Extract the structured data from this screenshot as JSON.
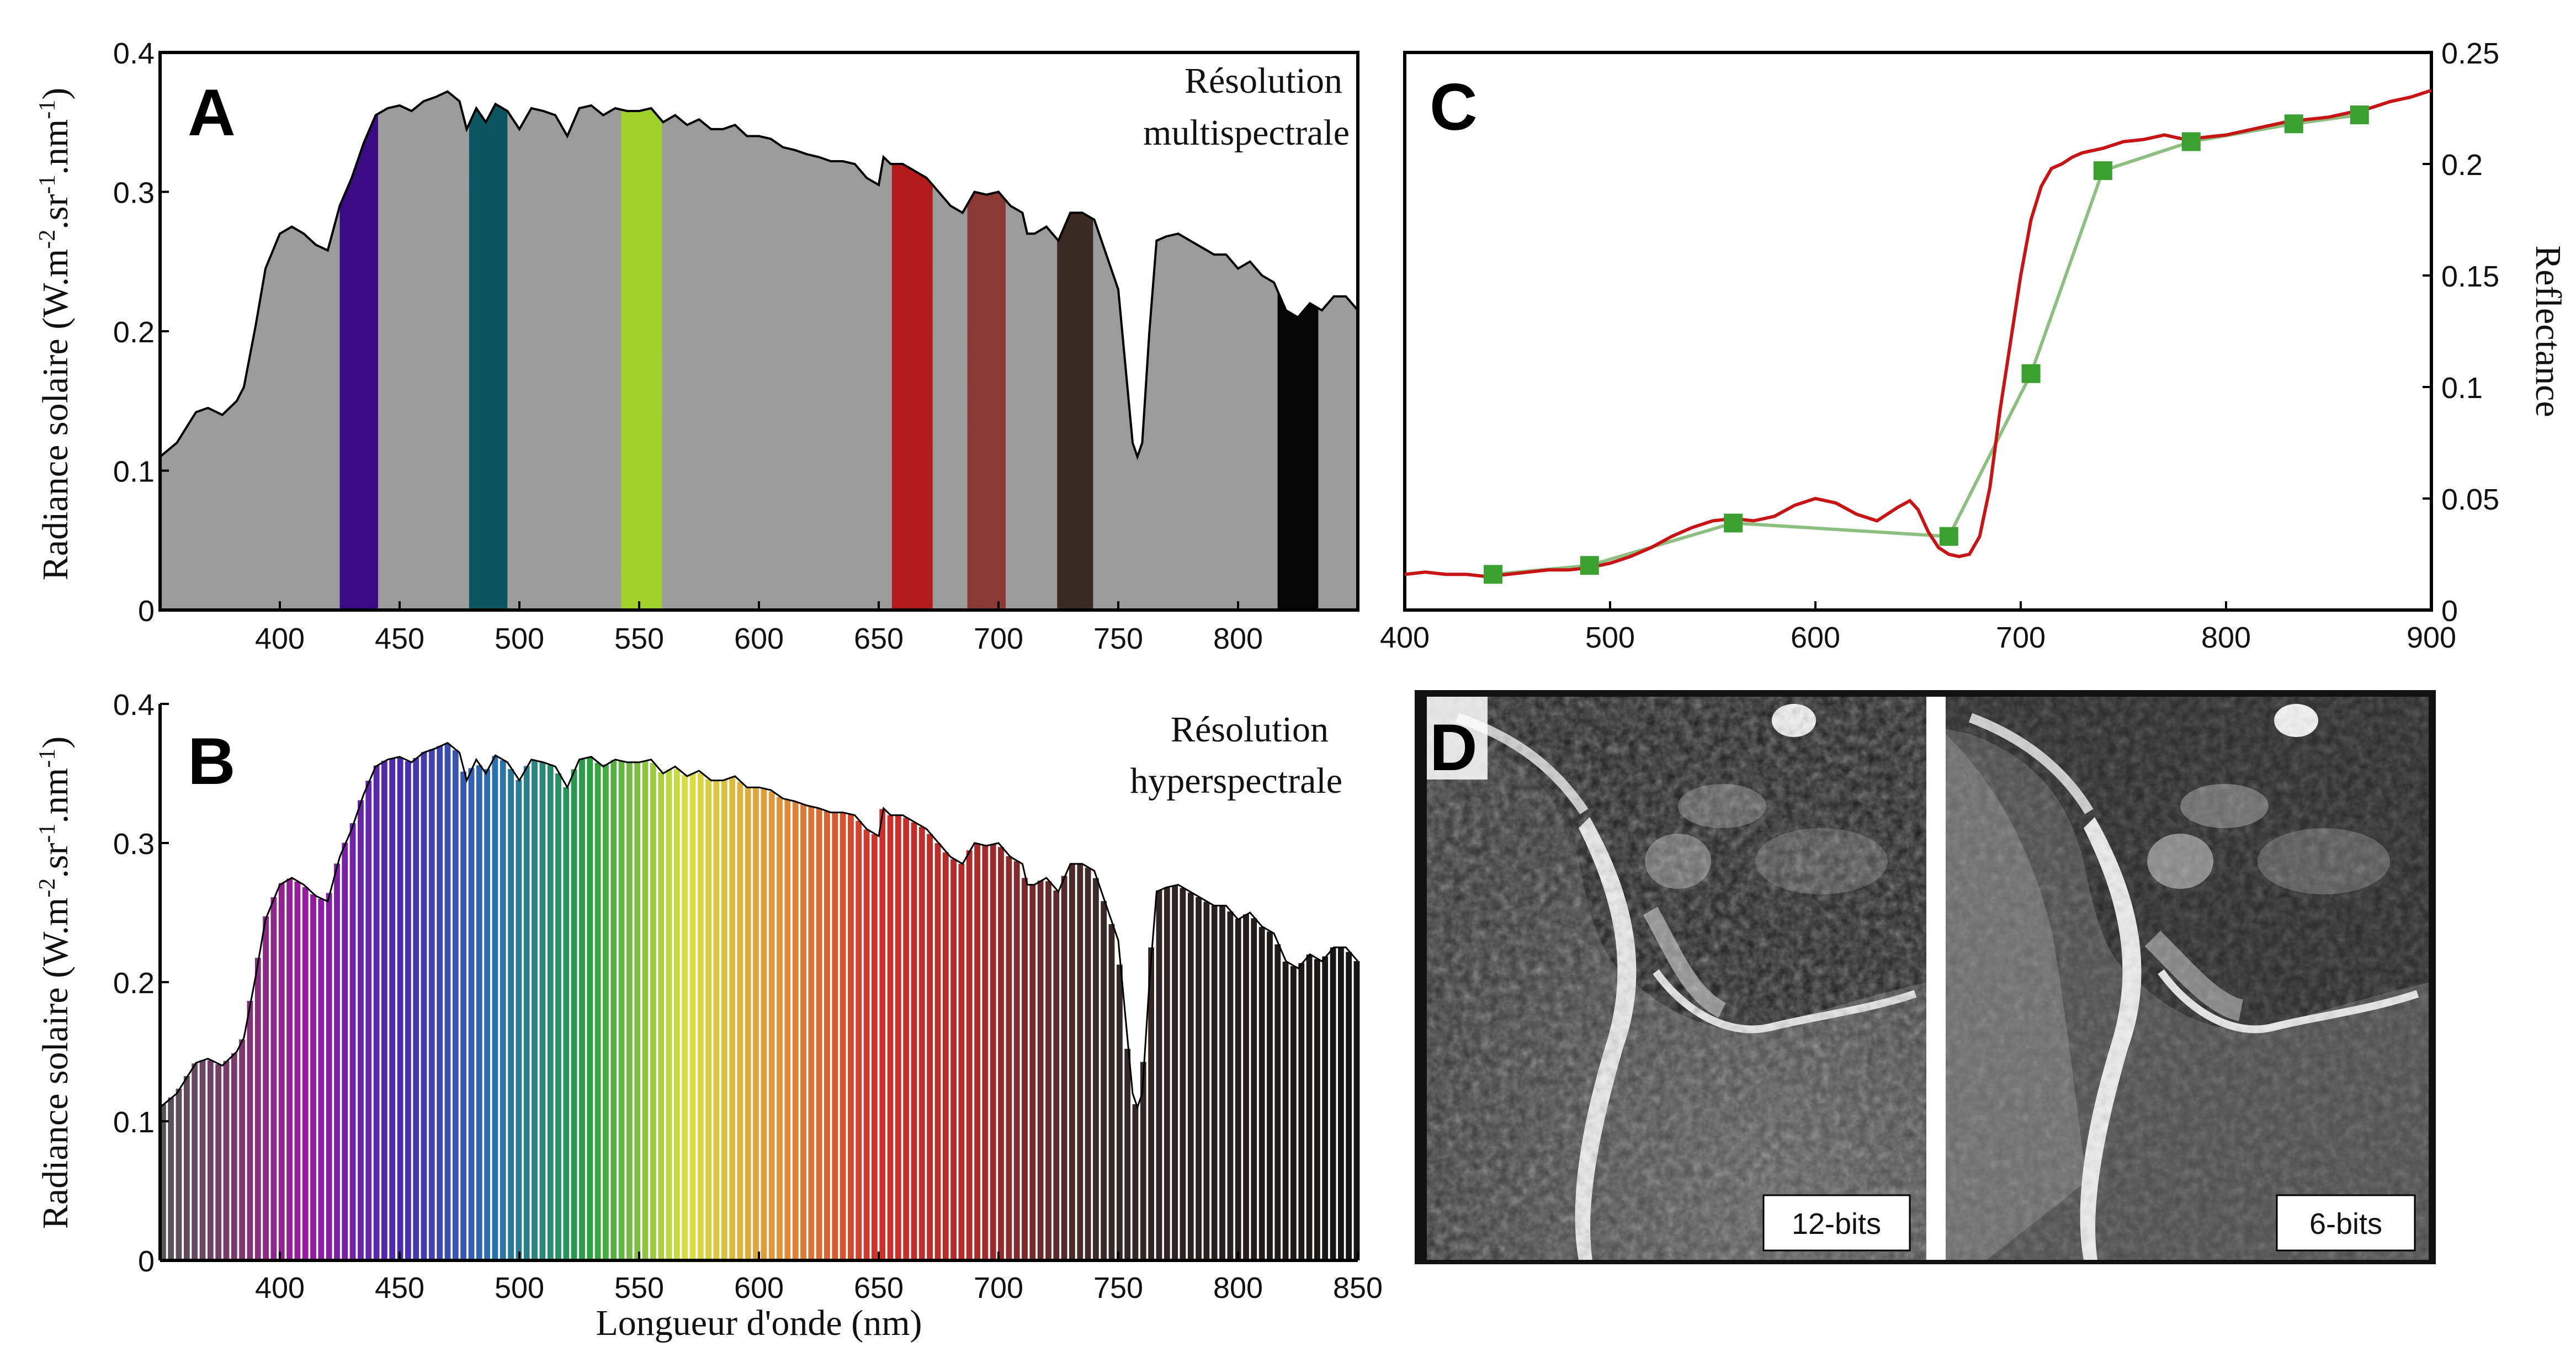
{
  "chart_data": [
    {
      "panel": "A",
      "type": "area",
      "label_lines": [
        "Résolution",
        "multispectrale"
      ],
      "xlabel": "",
      "ylabel": "Radiance solaire (W.m-2.sr-1.nm-1)",
      "ylabel_parts": [
        "Radiance solaire (W.m",
        "-2",
        ".sr",
        "-1",
        ".nm",
        "-1",
        ")"
      ],
      "xlim": [
        350,
        850
      ],
      "ylim": [
        0,
        0.4
      ],
      "xticks": [
        400,
        450,
        500,
        550,
        600,
        650,
        700,
        750,
        800
      ],
      "yticks": [
        0,
        0.1,
        0.2,
        0.3,
        0.4
      ],
      "fill_color": "#9b9b9b",
      "spectrum": {
        "x": [
          350,
          357,
          365,
          370,
          376,
          382,
          385,
          390,
          394,
          400,
          405,
          410,
          415,
          420,
          425,
          430,
          435,
          440,
          445,
          450,
          455,
          460,
          465,
          470,
          475,
          478,
          482,
          486,
          490,
          495,
          500,
          505,
          510,
          515,
          520,
          525,
          530,
          535,
          540,
          545,
          550,
          555,
          560,
          565,
          570,
          575,
          580,
          585,
          590,
          595,
          600,
          605,
          610,
          615,
          620,
          625,
          630,
          635,
          640,
          645,
          650,
          652,
          655,
          660,
          665,
          670,
          675,
          680,
          685,
          690,
          695,
          700,
          705,
          710,
          712,
          715,
          720,
          725,
          730,
          735,
          740,
          745,
          750,
          753,
          756,
          758,
          760,
          763,
          766,
          770,
          775,
          780,
          785,
          790,
          795,
          800,
          805,
          810,
          815,
          820,
          825,
          830,
          835,
          840,
          845,
          850
        ],
        "y": [
          0.11,
          0.12,
          0.142,
          0.145,
          0.14,
          0.15,
          0.16,
          0.205,
          0.245,
          0.27,
          0.275,
          0.27,
          0.262,
          0.258,
          0.29,
          0.31,
          0.335,
          0.355,
          0.36,
          0.362,
          0.358,
          0.365,
          0.368,
          0.372,
          0.365,
          0.345,
          0.36,
          0.35,
          0.363,
          0.358,
          0.345,
          0.36,
          0.358,
          0.355,
          0.34,
          0.36,
          0.362,
          0.355,
          0.36,
          0.358,
          0.358,
          0.36,
          0.35,
          0.355,
          0.348,
          0.352,
          0.345,
          0.345,
          0.348,
          0.34,
          0.34,
          0.338,
          0.332,
          0.33,
          0.327,
          0.325,
          0.322,
          0.322,
          0.32,
          0.31,
          0.305,
          0.325,
          0.32,
          0.32,
          0.315,
          0.31,
          0.3,
          0.29,
          0.285,
          0.3,
          0.298,
          0.3,
          0.29,
          0.285,
          0.27,
          0.27,
          0.275,
          0.265,
          0.285,
          0.285,
          0.28,
          0.255,
          0.23,
          0.175,
          0.12,
          0.11,
          0.12,
          0.2,
          0.265,
          0.268,
          0.27,
          0.265,
          0.26,
          0.255,
          0.255,
          0.245,
          0.25,
          0.24,
          0.235,
          0.215,
          0.21,
          0.22,
          0.215,
          0.225,
          0.225,
          0.215
        ]
      },
      "bands": [
        {
          "center": 433,
          "width": 16,
          "color": "#3a0a82"
        },
        {
          "center": 487,
          "width": 16,
          "color": "#0b5560"
        },
        {
          "center": 551,
          "width": 17,
          "color": "#a0d22b"
        },
        {
          "center": 664,
          "width": 17,
          "color": "#b31b1b"
        },
        {
          "center": 695,
          "width": 16,
          "color": "#8a3a32"
        },
        {
          "center": 732,
          "width": 15,
          "color": "#3a2a24"
        },
        {
          "center": 825,
          "width": 17,
          "color": "#050505"
        }
      ]
    },
    {
      "panel": "B",
      "type": "area",
      "label_lines": [
        "Résolution",
        "hyperspectrale"
      ],
      "xlabel": "Longueur d'onde (nm)",
      "ylabel": "Radiance solaire (W.m-2.sr-1.nm-1)",
      "ylabel_parts": [
        "Radiance solaire (W.m",
        "-2",
        ".sr",
        "-1",
        ".nm",
        "-1",
        ")"
      ],
      "xlim": [
        350,
        850
      ],
      "ylim": [
        0,
        0.4
      ],
      "xticks": [
        400,
        450,
        500,
        550,
        600,
        650,
        700,
        750,
        800,
        850
      ],
      "yticks": [
        0,
        0.1,
        0.2,
        0.3,
        0.4
      ],
      "band_step_nm": 3.3,
      "colormap": {
        "stops": [
          350,
          380,
          410,
          450,
          490,
          530,
          570,
          610,
          650,
          690,
          740,
          850
        ],
        "colors": [
          "#555555",
          "#7a3a6a",
          "#9a1aa0",
          "#4a2ab0",
          "#2a70b0",
          "#2aa040",
          "#d8e040",
          "#e0903a",
          "#d0302a",
          "#b02a2a",
          "#3a2a2a",
          "#151515"
        ]
      }
    },
    {
      "panel": "C",
      "type": "line",
      "ylabel": "Reflectance",
      "xlabel": "",
      "xlim": [
        400,
        900
      ],
      "ylim": [
        0,
        0.25
      ],
      "xticks": [
        400,
        500,
        600,
        700,
        800,
        900
      ],
      "ytick_labels": [
        "0",
        "0.05",
        "0.1",
        "0.15",
        "0.2",
        "0.25"
      ],
      "yticks": [
        0,
        0.05,
        0.1,
        0.15,
        0.2,
        0.25
      ],
      "series": [
        {
          "style": "continuous",
          "color": "#c81414",
          "x": [
            400,
            410,
            420,
            430,
            440,
            450,
            460,
            470,
            480,
            490,
            500,
            510,
            520,
            530,
            540,
            550,
            560,
            570,
            580,
            590,
            600,
            610,
            620,
            630,
            640,
            646,
            650,
            655,
            660,
            665,
            670,
            675,
            680,
            685,
            690,
            695,
            700,
            705,
            710,
            715,
            720,
            725,
            730,
            740,
            750,
            760,
            770,
            780,
            790,
            800,
            810,
            820,
            830,
            840,
            850,
            860,
            870,
            880,
            890,
            900
          ],
          "y": [
            0.016,
            0.017,
            0.016,
            0.016,
            0.015,
            0.016,
            0.017,
            0.018,
            0.018,
            0.019,
            0.021,
            0.024,
            0.028,
            0.033,
            0.037,
            0.04,
            0.041,
            0.04,
            0.042,
            0.047,
            0.05,
            0.048,
            0.043,
            0.04,
            0.046,
            0.049,
            0.045,
            0.035,
            0.028,
            0.025,
            0.024,
            0.025,
            0.033,
            0.055,
            0.09,
            0.12,
            0.15,
            0.175,
            0.19,
            0.198,
            0.2,
            0.203,
            0.205,
            0.207,
            0.21,
            0.211,
            0.213,
            0.211,
            0.212,
            0.213,
            0.215,
            0.217,
            0.219,
            0.22,
            0.221,
            0.223,
            0.225,
            0.228,
            0.23,
            0.233
          ]
        },
        {
          "style": "sampled",
          "color": "#8cbf80",
          "marker_color": "#3aa030",
          "x": [
            443,
            490,
            560,
            665,
            705,
            740,
            783,
            833,
            865
          ],
          "y": [
            0.016,
            0.02,
            0.039,
            0.033,
            0.106,
            0.197,
            0.21,
            0.218,
            0.222
          ]
        }
      ]
    }
  ],
  "panel_d": {
    "letter": "D",
    "images": [
      {
        "label": "12-bits"
      },
      {
        "label": "6-bits"
      }
    ]
  }
}
